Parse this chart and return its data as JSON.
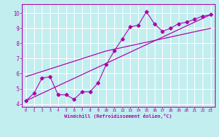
{
  "title": "",
  "xlabel": "Windchill (Refroidissement éolien,°C)",
  "ylabel": "",
  "bg_color": "#c2eef0",
  "line_color": "#aa00aa",
  "grid_color": "#aadddd",
  "xlim": [
    -0.5,
    23.5
  ],
  "ylim": [
    3.8,
    10.6
  ],
  "yticks": [
    4,
    5,
    6,
    7,
    8,
    9,
    10
  ],
  "xticks": [
    0,
    1,
    2,
    3,
    4,
    5,
    6,
    7,
    8,
    9,
    10,
    11,
    12,
    13,
    14,
    15,
    16,
    17,
    18,
    19,
    20,
    21,
    22,
    23
  ],
  "curve1_x": [
    0,
    1,
    2,
    3,
    4,
    5,
    6,
    7,
    8,
    9,
    10,
    11,
    12,
    13,
    14,
    15,
    16,
    17,
    18,
    19,
    20,
    21,
    22,
    23
  ],
  "curve1_y": [
    4.2,
    4.7,
    5.7,
    5.8,
    4.6,
    4.6,
    4.3,
    4.8,
    4.8,
    5.4,
    6.6,
    7.5,
    8.3,
    9.1,
    9.2,
    10.1,
    9.3,
    8.8,
    9.0,
    9.3,
    9.4,
    9.6,
    9.8,
    9.9
  ],
  "trend1_x": [
    0,
    23
  ],
  "trend1_y": [
    4.2,
    9.9
  ],
  "trend2_x": [
    0,
    10,
    23
  ],
  "trend2_y": [
    5.8,
    7.5,
    9.0
  ],
  "marker": "D",
  "marker_size": 2.5
}
